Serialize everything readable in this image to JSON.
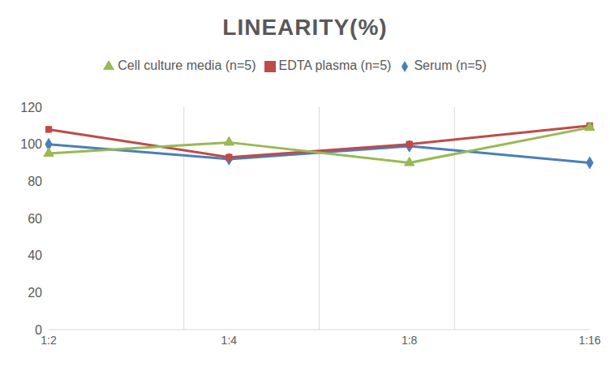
{
  "chart_data": {
    "type": "line",
    "title": "LINEARITY(%)",
    "categories": [
      "1:2",
      "1:4",
      "1:8",
      "1:16"
    ],
    "series": [
      {
        "name": "Serum (n=5)",
        "color": "#4a7ebb",
        "marker": "diamond",
        "values": [
          100,
          92,
          99,
          90
        ]
      },
      {
        "name": "EDTA plasma (n=5)",
        "color": "#be4b48",
        "marker": "square",
        "values": [
          108,
          93,
          100,
          110
        ]
      },
      {
        "name": "Cell culture media (n=5)",
        "color": "#98b954",
        "marker": "triangle",
        "values": [
          95,
          101,
          90,
          109
        ]
      }
    ],
    "ylim": [
      0,
      120
    ],
    "yticks": [
      0,
      20,
      40,
      60,
      80,
      100,
      120
    ],
    "grid": "x",
    "legend": "top"
  }
}
